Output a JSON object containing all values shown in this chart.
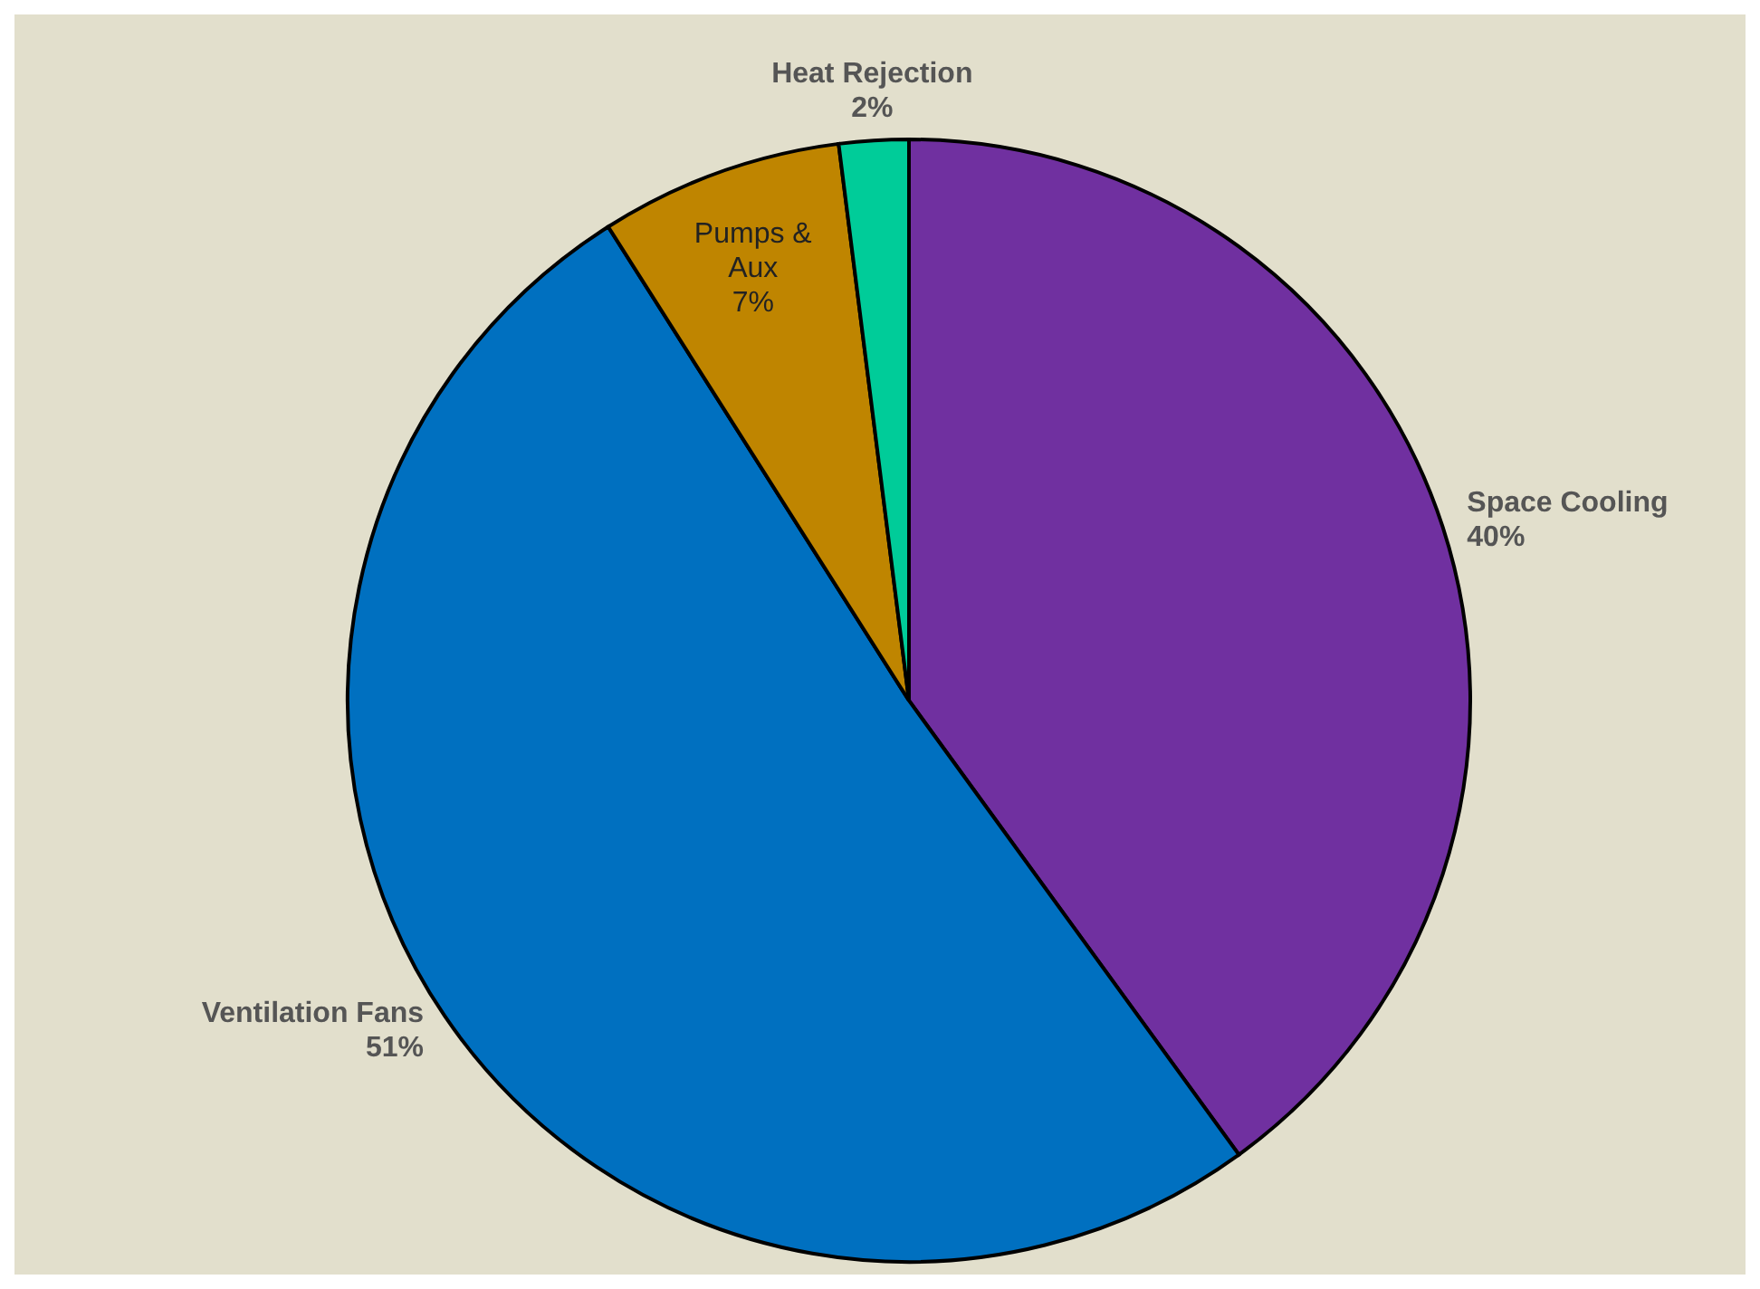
{
  "chart_data": {
    "type": "pie",
    "categories": [
      "Space Cooling",
      "Ventilation Fans",
      "Pumps & Aux",
      "Heat Rejection"
    ],
    "values": [
      40,
      51,
      7,
      2
    ],
    "colors": [
      "#7030a0",
      "#0070c0",
      "#bf8500",
      "#00cc99"
    ],
    "value_labels": [
      "40%",
      "51%",
      "7%",
      "2%"
    ]
  }
}
